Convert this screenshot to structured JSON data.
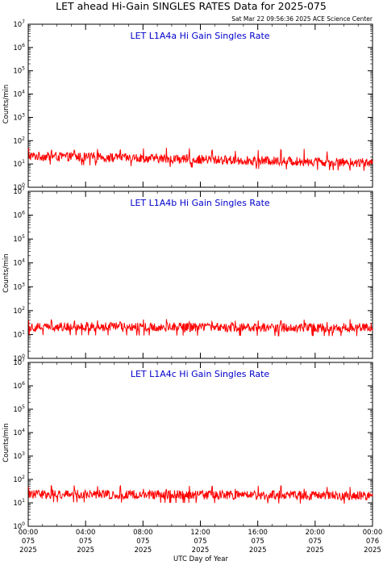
{
  "title": "LET ahead Hi-Gain SINGLES RATES Data for 2025-075",
  "timestamp": "Sat Mar 22 09:56:36 2025 ACE Science Center",
  "colors": {
    "series": "#ff0000",
    "panel_title": "#0000cc",
    "axis": "#000000"
  },
  "chart_data": [
    {
      "type": "line",
      "title": "LET L1A4a Hi Gain Singles Rate",
      "ylabel": "Counts/min",
      "yscale": "log",
      "ylim": [
        1,
        10000000
      ],
      "xlim": [
        0,
        24
      ],
      "series": [
        {
          "baseline": 18,
          "start_level": 22,
          "end_level": 11,
          "spike_level": 40,
          "spike_interval_hours": 1.6
        }
      ]
    },
    {
      "type": "line",
      "title": "LET L1A4b Hi Gain Singles Rate",
      "ylabel": "Counts/min",
      "yscale": "log",
      "ylim": [
        1,
        10000000
      ],
      "xlim": [
        0,
        24
      ],
      "series": [
        {
          "baseline": 20,
          "start_level": 21,
          "end_level": 19,
          "spike_level": 35,
          "spike_interval_hours": 1.6
        }
      ]
    },
    {
      "type": "line",
      "title": "LET L1A4c Hi Gain Singles Rate",
      "ylabel": "Counts/min",
      "yscale": "log",
      "ylim": [
        1,
        10000000
      ],
      "xlim": [
        0,
        24
      ],
      "series": [
        {
          "baseline": 22,
          "start_level": 24,
          "end_level": 20,
          "spike_level": 45,
          "spike_interval_hours": 1.6
        }
      ]
    }
  ],
  "y_ticks": [
    {
      "base": "10",
      "exp": "0"
    },
    {
      "base": "10",
      "exp": "1"
    },
    {
      "base": "10",
      "exp": "2"
    },
    {
      "base": "10",
      "exp": "3"
    },
    {
      "base": "10",
      "exp": "4"
    },
    {
      "base": "10",
      "exp": "5"
    },
    {
      "base": "10",
      "exp": "6"
    },
    {
      "base": "10",
      "exp": "7"
    }
  ],
  "x_ticks": [
    {
      "time": "00:00",
      "doy": "075",
      "year": "2025"
    },
    {
      "time": "04:00",
      "doy": "075",
      "year": "2025"
    },
    {
      "time": "08:00",
      "doy": "075",
      "year": "2025"
    },
    {
      "time": "12:00",
      "doy": "075",
      "year": "2025"
    },
    {
      "time": "16:00",
      "doy": "075",
      "year": "2025"
    },
    {
      "time": "20:00",
      "doy": "075",
      "year": "2025"
    },
    {
      "time": "00:00",
      "doy": "076",
      "year": "2025"
    }
  ],
  "xlabel": "UTC Day of Year"
}
